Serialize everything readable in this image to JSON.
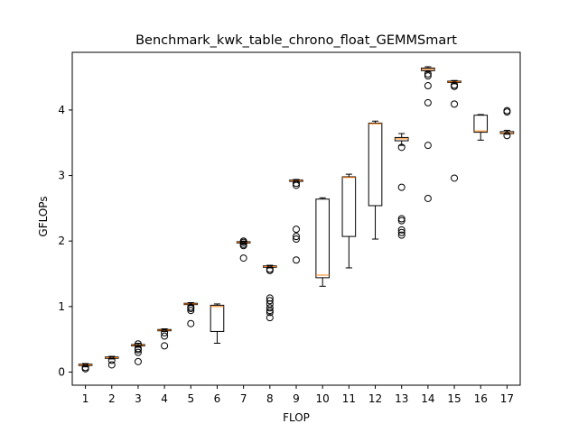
{
  "chart_data": {
    "type": "boxplot",
    "title": "Benchmark_kwk_table_chrono_float_GEMMSmart",
    "xlabel": "FLOP",
    "ylabel": "GFLOPs",
    "categories": [
      "1",
      "2",
      "3",
      "4",
      "5",
      "6",
      "7",
      "8",
      "9",
      "10",
      "11",
      "12",
      "13",
      "14",
      "15",
      "16",
      "17"
    ],
    "yticks": [
      0,
      1,
      2,
      3,
      4
    ],
    "ylim": [
      -0.2,
      4.88
    ],
    "grid": false,
    "colors": {
      "box": "#000000",
      "median": "#ff7f0e",
      "flier": "#000000"
    },
    "boxes": [
      {
        "x": "1",
        "whislo": 0.08,
        "q1": 0.1,
        "med": 0.11,
        "q3": 0.12,
        "whishi": 0.13,
        "fliers": [
          0.05,
          0.07
        ]
      },
      {
        "x": "2",
        "whislo": 0.2,
        "q1": 0.21,
        "med": 0.22,
        "q3": 0.23,
        "whishi": 0.24,
        "fliers": [
          0.11,
          0.18
        ]
      },
      {
        "x": "3",
        "whislo": 0.38,
        "q1": 0.4,
        "med": 0.41,
        "q3": 0.42,
        "whishi": 0.44,
        "fliers": [
          0.16,
          0.3,
          0.34,
          0.36,
          0.43
        ]
      },
      {
        "x": "4",
        "whislo": 0.62,
        "q1": 0.63,
        "med": 0.64,
        "q3": 0.65,
        "whishi": 0.66,
        "fliers": [
          0.4,
          0.55,
          0.6
        ]
      },
      {
        "x": "5",
        "whislo": 1.02,
        "q1": 1.03,
        "med": 1.04,
        "q3": 1.05,
        "whishi": 1.06,
        "fliers": [
          0.74,
          0.94,
          0.97,
          0.99
        ]
      },
      {
        "x": "6",
        "whislo": 0.44,
        "q1": 0.62,
        "med": 1.0,
        "q3": 1.02,
        "whishi": 1.04,
        "fliers": []
      },
      {
        "x": "7",
        "whislo": 1.96,
        "q1": 1.97,
        "med": 1.98,
        "q3": 1.99,
        "whishi": 2.0,
        "fliers": [
          1.74,
          1.93,
          1.95,
          1.98,
          2.0
        ]
      },
      {
        "x": "8",
        "whislo": 1.59,
        "q1": 1.6,
        "med": 1.61,
        "q3": 1.62,
        "whishi": 1.63,
        "fliers": [
          0.83,
          0.91,
          0.94,
          0.98,
          1.04,
          1.09,
          1.13,
          1.55,
          1.57
        ]
      },
      {
        "x": "9",
        "whislo": 2.9,
        "q1": 2.91,
        "med": 2.92,
        "q3": 2.93,
        "whishi": 2.94,
        "fliers": [
          1.71,
          2.03,
          2.07,
          2.18,
          2.85,
          2.88
        ]
      },
      {
        "x": "10",
        "whislo": 1.31,
        "q1": 1.44,
        "med": 1.48,
        "q3": 2.64,
        "whishi": 2.66,
        "fliers": []
      },
      {
        "x": "11",
        "whislo": 1.59,
        "q1": 2.07,
        "med": 2.97,
        "q3": 2.98,
        "whishi": 3.02,
        "fliers": []
      },
      {
        "x": "12",
        "whislo": 2.03,
        "q1": 2.54,
        "med": 3.79,
        "q3": 3.8,
        "whishi": 3.83,
        "fliers": []
      },
      {
        "x": "13",
        "whislo": 3.46,
        "q1": 3.53,
        "med": 3.56,
        "q3": 3.58,
        "whishi": 3.64,
        "fliers": [
          2.09,
          2.13,
          2.17,
          2.31,
          2.34,
          2.82,
          3.43
        ]
      },
      {
        "x": "14",
        "whislo": 4.58,
        "q1": 4.6,
        "med": 4.62,
        "q3": 4.64,
        "whishi": 4.66,
        "fliers": [
          2.65,
          3.46,
          4.11,
          4.37,
          4.52,
          4.55
        ]
      },
      {
        "x": "15",
        "whislo": 4.4,
        "q1": 4.42,
        "med": 4.43,
        "q3": 4.44,
        "whishi": 4.45,
        "fliers": [
          2.96,
          4.09,
          4.36,
          4.38
        ]
      },
      {
        "x": "16",
        "whislo": 3.54,
        "q1": 3.66,
        "med": 3.68,
        "q3": 3.92,
        "whishi": 3.93,
        "fliers": []
      },
      {
        "x": "17",
        "whislo": 3.63,
        "q1": 3.64,
        "med": 3.65,
        "q3": 3.67,
        "whishi": 3.69,
        "fliers": [
          3.61,
          3.97,
          3.99
        ]
      }
    ]
  }
}
